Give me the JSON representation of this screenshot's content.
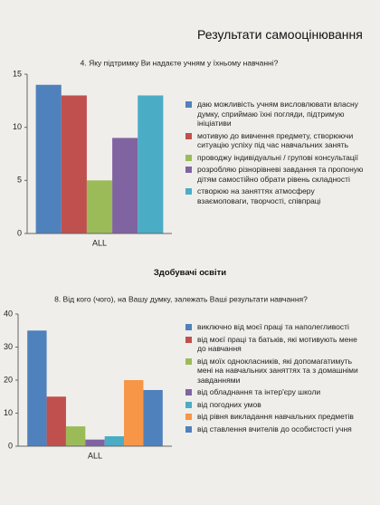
{
  "page_title": "Результати самооцінювання",
  "section_heading": "Здобувачі освіти",
  "chart_data": [
    {
      "type": "bar",
      "title": "4. Яку підтримку Ви надаєте учням у їхньому навчанні?",
      "categories": [
        "ALL"
      ],
      "ylim": [
        0,
        15
      ],
      "yticks": [
        0,
        5,
        10,
        15
      ],
      "grid": false,
      "legend": "right",
      "series": [
        {
          "name": "даю можливість учням висловлювати власну думку, сприймаю їхні погляди, підтримую ініціативи",
          "color": "#4f81bd",
          "values": [
            14
          ]
        },
        {
          "name": "мотивую до вивчення предмету, створюючи ситуацію успіху під час навчальних занять",
          "color": "#c0504d",
          "values": [
            13
          ]
        },
        {
          "name": "проводжу індивідуальні / групові консультації",
          "color": "#9bbb59",
          "values": [
            5
          ]
        },
        {
          "name": "розробляю різнорівневі завдання та пропоную дітям самостійно обрати рівень складності",
          "color": "#8064a2",
          "values": [
            9
          ]
        },
        {
          "name": "створюю на заняттях атмосферу взаємоповаги, творчості, співпраці",
          "color": "#4bacc6",
          "values": [
            13
          ]
        }
      ]
    },
    {
      "type": "bar",
      "title": "8. Від кого (чого), на Вашу думку, залежать Ваші результати навчання?",
      "categories": [
        "ALL"
      ],
      "ylim": [
        0,
        40
      ],
      "yticks": [
        0,
        10,
        20,
        30,
        40
      ],
      "grid": false,
      "legend": "right",
      "series": [
        {
          "name": "виключно від моєї праці та наполегливості",
          "color": "#4f81bd",
          "values": [
            35
          ]
        },
        {
          "name": "від моєї праці та батьків, які мотивують мене до навчання",
          "color": "#c0504d",
          "values": [
            15
          ]
        },
        {
          "name": "від моїх однокласників, які допомагатимуть мені на навчальних заняттях та з домашніми завданнями",
          "color": "#9bbb59",
          "values": [
            6
          ]
        },
        {
          "name": "від обладнання та інтер'єру школи",
          "color": "#8064a2",
          "values": [
            2
          ]
        },
        {
          "name": "від погодних умов",
          "color": "#4bacc6",
          "values": [
            3
          ]
        },
        {
          "name": "від рівня викладання навчальних предметів",
          "color": "#f79646",
          "values": [
            20
          ]
        },
        {
          "name": "від ставлення вчителів до особистості учня",
          "color": "#4f81bd",
          "values": [
            17
          ]
        }
      ]
    }
  ]
}
